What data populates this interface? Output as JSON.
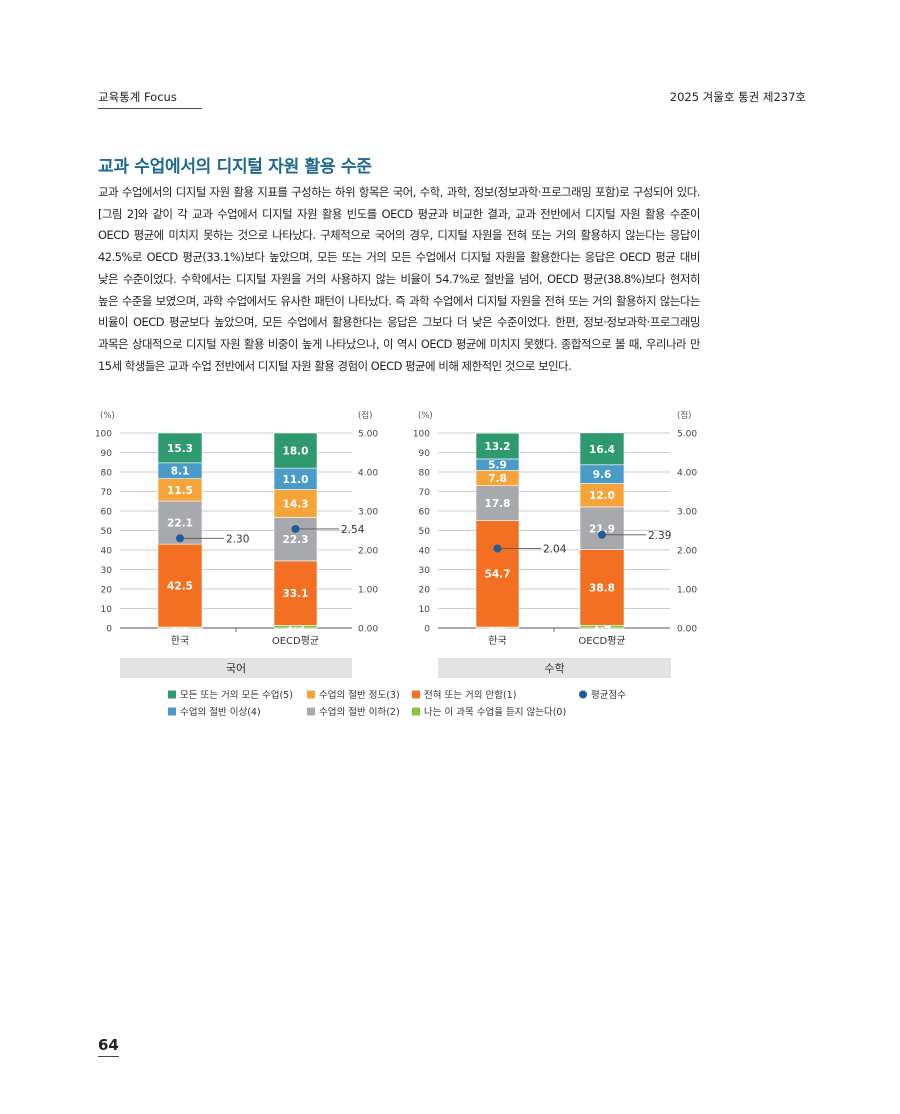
{
  "header": {
    "left": "교육통계 Focus",
    "right": "2025 겨울호 통권 제237호"
  },
  "section_title": "교과 수업에서의 디지털 자원 활용 수준",
  "body_text": "교과 수업에서의 디지털 자원 활용 지표를 구성하는 하위 항목은 국어, 수학, 과학, 정보(정보과학·프로그래밍 포함)로 구성되어 있다. [그림 2]와 같이 각 교과 수업에서 디지털 자원 활용 빈도를 OECD 평균과 비교한 결과, 교과 전반에서 디지털 자원 활용 수준이 OECD 평균에 미치지 못하는 것으로 나타났다. 구체적으로 국어의 경우, 디지털 자원을 전혀 또는 거의 활용하지 않는다는 응답이 42.5%로 OECD 평균(33.1%)보다 높았으며, 모든 또는 거의 모든 수업에서 디지털 자원을 활용한다는 응답은 OECD 평균 대비 낮은 수준이었다. 수학에서는 디지털 자원을 거의 사용하지 않는 비율이 54.7%로 절반을 넘어, OECD 평균(38.8%)보다 현저히 높은 수준을 보였으며, 과학 수업에서도 유사한 패턴이 나타났다. 즉 과학 수업에서 디지털 자원을 전혀 또는 거의 활용하지 않는다는 비율이 OECD 평균보다 높았으며, 모든 수업에서 활용한다는 응답은 그보다 더 낮은 수준이었다. 한편, 정보·정보과학·프로그래밍 과목은 상대적으로 디지털 자원 활용 비중이 높게 나타났으나, 이 역시 OECD 평균에 미치지 못했다. 종합적으로 볼 때, 우리나라 만 15세 학생들은 교과 수업 전반에서 디지털 자원 활용 경험이 OECD 평균에 비해 제한적인 것으로 보인다.",
  "page_number": "64",
  "chart_data": {
    "type": "bar",
    "stacked": true,
    "left_unit": "(%)",
    "right_unit": "(점)",
    "left_ticks": [
      "100",
      "90",
      "80",
      "70",
      "60",
      "50",
      "40",
      "30",
      "20",
      "10",
      "0"
    ],
    "right_ticks": [
      "5.00",
      "4.00",
      "3.00",
      "2.00",
      "1.00",
      "0.00"
    ],
    "ylim": [
      0,
      100
    ],
    "y2lim": [
      0,
      5
    ],
    "grid": true,
    "legend_position": "bottom",
    "categories": [
      "한국",
      "OECD평균"
    ],
    "series_meta": [
      {
        "name": "나는 이 과목 수업을 듣지 않는다(0)",
        "color": "#8bc43f"
      },
      {
        "name": "전혀 또는 거의 안함(1)",
        "color": "#f36f21"
      },
      {
        "name": "수업의 절반 이하(2)",
        "color": "#a7a9ac"
      },
      {
        "name": "수업의 절반 정도(3)",
        "color": "#f5a43a"
      },
      {
        "name": "수업의 절반 이상(4)",
        "color": "#4a9cc8"
      },
      {
        "name": "모든 또는 거의 모든 수업(5)",
        "color": "#2e9a6e"
      }
    ],
    "point_series": {
      "name": "평균점수",
      "color": "#1f5c99"
    },
    "panels": [
      {
        "subject": "국어",
        "bars": [
          {
            "category": "한국",
            "values": [
              0.5,
              42.5,
              22.1,
              11.5,
              8.1,
              15.3
            ],
            "labels": [
              "0.5",
              "42.5",
              "22.1",
              "11.5",
              "8.1",
              "15.3"
            ],
            "score": 2.3,
            "score_label": "2.30"
          },
          {
            "category": "OECD평균",
            "values": [
              1.3,
              33.1,
              22.3,
              14.3,
              11.0,
              18.0
            ],
            "labels": [
              "1.3",
              "33.1",
              "22.3",
              "14.3",
              "11.0",
              "18.0"
            ],
            "score": 2.54,
            "score_label": "2.54"
          }
        ]
      },
      {
        "subject": "수학",
        "bars": [
          {
            "category": "한국",
            "values": [
              0.5,
              54.7,
              17.8,
              7.8,
              5.9,
              13.2
            ],
            "labels": [
              "0.5",
              "54.7",
              "17.8",
              "7.8",
              "5.9",
              "13.2"
            ],
            "score": 2.04,
            "score_label": "2.04"
          },
          {
            "category": "OECD평균",
            "values": [
              1.4,
              38.8,
              21.9,
              12.0,
              9.6,
              16.4
            ],
            "labels": [
              "1.4",
              "38.8",
              "21.9",
              "12.0",
              "9.6",
              "16.4"
            ],
            "score": 2.39,
            "score_label": "2.39"
          }
        ]
      }
    ],
    "legend": [
      [
        {
          "label": "모든 또는 거의 모든 수업(5)",
          "color": "#2e9a6e",
          "marker": "square"
        },
        {
          "label": "수업의 절반 정도(3)",
          "color": "#f5a43a",
          "marker": "square"
        },
        {
          "label": "전혀 또는 거의 안함(1)",
          "color": "#f36f21",
          "marker": "square"
        },
        {
          "label": "평균점수",
          "color": "#1f5c99",
          "marker": "circle"
        }
      ],
      [
        {
          "label": "수업의 절반 이상(4)",
          "color": "#4a9cc8",
          "marker": "square"
        },
        {
          "label": "수업의 절반 이하(2)",
          "color": "#a7a9ac",
          "marker": "square"
        },
        {
          "label": "나는 이 과목 수업을 듣지 않는다(0)",
          "color": "#8bc43f",
          "marker": "square"
        }
      ]
    ]
  }
}
